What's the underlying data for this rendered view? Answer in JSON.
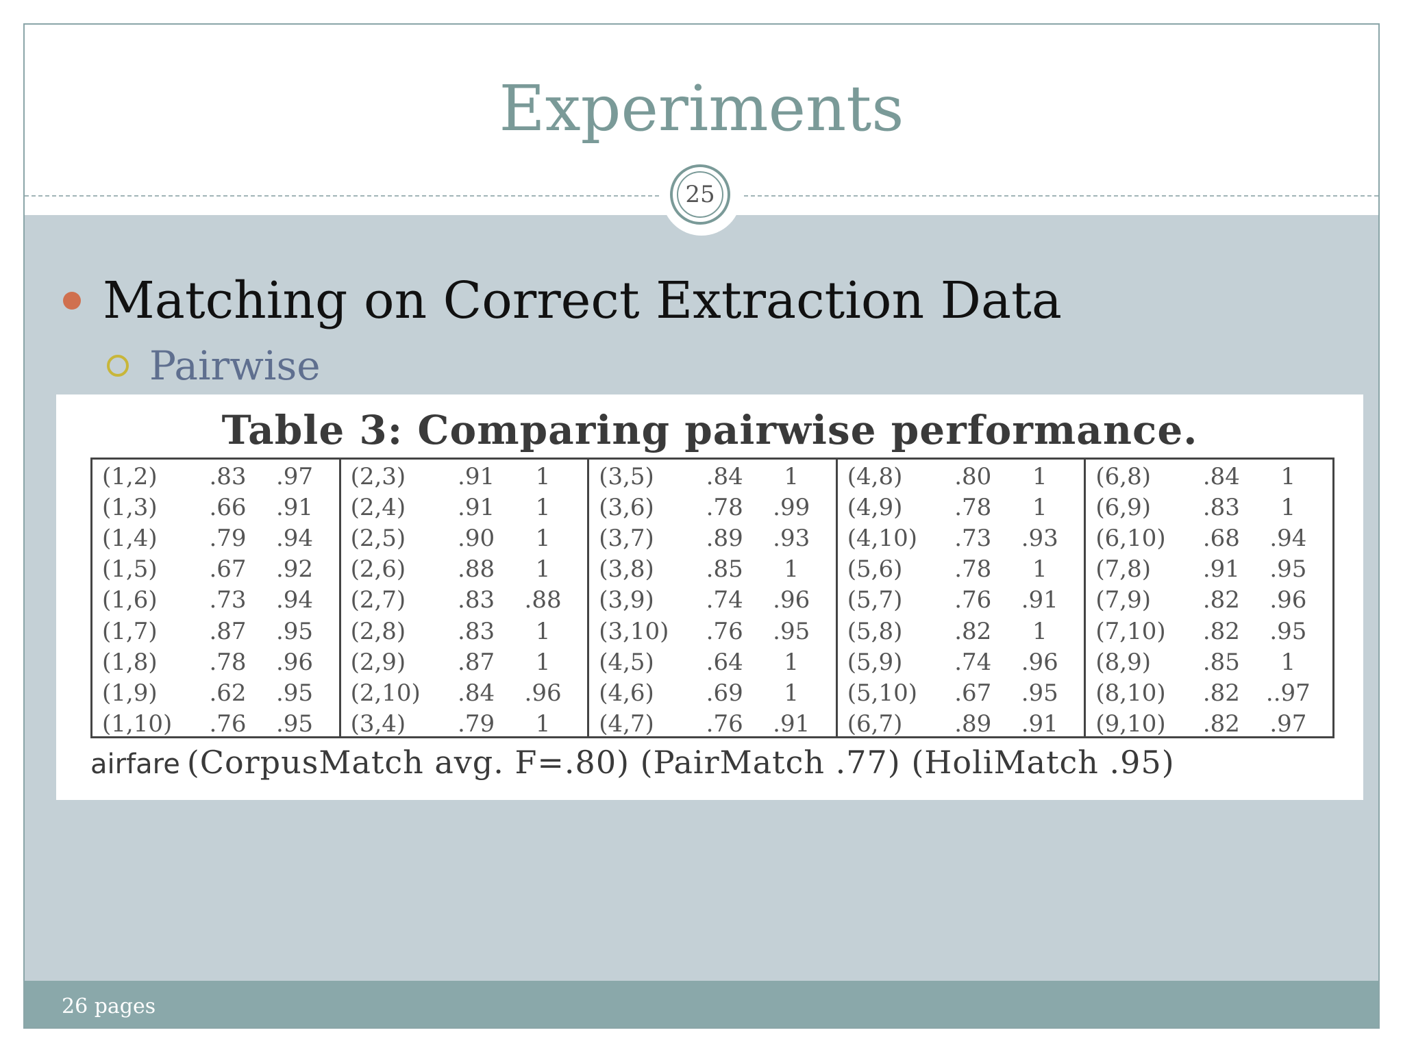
{
  "slide": {
    "title": "Experiments",
    "page_number": "25",
    "bullet1": "Matching on Correct Extraction Data",
    "bullet2": "Pairwise"
  },
  "table": {
    "caption": "Table 3: Comparing pairwise performance.",
    "columns": [
      [
        {
          "pair": "(1,2)",
          "v1": ".83",
          "v2": ".97"
        },
        {
          "pair": "(1,3)",
          "v1": ".66",
          "v2": ".91"
        },
        {
          "pair": "(1,4)",
          "v1": ".79",
          "v2": ".94"
        },
        {
          "pair": "(1,5)",
          "v1": ".67",
          "v2": ".92"
        },
        {
          "pair": "(1,6)",
          "v1": ".73",
          "v2": ".94"
        },
        {
          "pair": "(1,7)",
          "v1": ".87",
          "v2": ".95"
        },
        {
          "pair": "(1,8)",
          "v1": ".78",
          "v2": ".96"
        },
        {
          "pair": "(1,9)",
          "v1": ".62",
          "v2": ".95"
        },
        {
          "pair": "(1,10)",
          "v1": ".76",
          "v2": ".95"
        }
      ],
      [
        {
          "pair": "(2,3)",
          "v1": ".91",
          "v2": "1"
        },
        {
          "pair": "(2,4)",
          "v1": ".91",
          "v2": "1"
        },
        {
          "pair": "(2,5)",
          "v1": ".90",
          "v2": "1"
        },
        {
          "pair": "(2,6)",
          "v1": ".88",
          "v2": "1"
        },
        {
          "pair": "(2,7)",
          "v1": ".83",
          "v2": ".88"
        },
        {
          "pair": "(2,8)",
          "v1": ".83",
          "v2": "1"
        },
        {
          "pair": "(2,9)",
          "v1": ".87",
          "v2": "1"
        },
        {
          "pair": "(2,10)",
          "v1": ".84",
          "v2": ".96"
        },
        {
          "pair": "(3,4)",
          "v1": ".79",
          "v2": "1"
        }
      ],
      [
        {
          "pair": "(3,5)",
          "v1": ".84",
          "v2": "1"
        },
        {
          "pair": "(3,6)",
          "v1": ".78",
          "v2": ".99"
        },
        {
          "pair": "(3,7)",
          "v1": ".89",
          "v2": ".93"
        },
        {
          "pair": "(3,8)",
          "v1": ".85",
          "v2": "1"
        },
        {
          "pair": "(3,9)",
          "v1": ".74",
          "v2": ".96"
        },
        {
          "pair": "(3,10)",
          "v1": ".76",
          "v2": ".95"
        },
        {
          "pair": "(4,5)",
          "v1": ".64",
          "v2": "1"
        },
        {
          "pair": "(4,6)",
          "v1": ".69",
          "v2": "1"
        },
        {
          "pair": "(4,7)",
          "v1": ".76",
          "v2": ".91"
        }
      ],
      [
        {
          "pair": "(4,8)",
          "v1": ".80",
          "v2": "1"
        },
        {
          "pair": "(4,9)",
          "v1": ".78",
          "v2": "1"
        },
        {
          "pair": "(4,10)",
          "v1": ".73",
          "v2": ".93"
        },
        {
          "pair": "(5,6)",
          "v1": ".78",
          "v2": "1"
        },
        {
          "pair": "(5,7)",
          "v1": ".76",
          "v2": ".91"
        },
        {
          "pair": "(5,8)",
          "v1": ".82",
          "v2": "1"
        },
        {
          "pair": "(5,9)",
          "v1": ".74",
          "v2": ".96"
        },
        {
          "pair": "(5,10)",
          "v1": ".67",
          "v2": ".95"
        },
        {
          "pair": "(6,7)",
          "v1": ".89",
          "v2": ".91"
        }
      ],
      [
        {
          "pair": "(6,8)",
          "v1": ".84",
          "v2": "1"
        },
        {
          "pair": "(6,9)",
          "v1": ".83",
          "v2": "1"
        },
        {
          "pair": "(6,10)",
          "v1": ".68",
          "v2": ".94"
        },
        {
          "pair": "(7,8)",
          "v1": ".91",
          "v2": ".95"
        },
        {
          "pair": "(7,9)",
          "v1": ".82",
          "v2": ".96"
        },
        {
          "pair": "(7,10)",
          "v1": ".82",
          "v2": ".95"
        },
        {
          "pair": "(8,9)",
          "v1": ".85",
          "v2": "1"
        },
        {
          "pair": "(8,10)",
          "v1": ".82",
          "v2": "..97"
        },
        {
          "pair": "(9,10)",
          "v1": ".82",
          "v2": ".97"
        }
      ]
    ],
    "footnote_label": "airfare",
    "footnote_text": "(CorpusMatch avg. F=.80)  (PairMatch .77)  (HoliMatch .95)"
  },
  "footer": {
    "text": "26 pages"
  },
  "colors": {
    "title": "#7a9a98",
    "content_bg": "#c4d0d6",
    "footer_bg": "#8aa8aa",
    "bullet_dot": "#d0704f",
    "bullet_ring": "#c8b63a",
    "sub_bullet_text": "#5f6f8f"
  }
}
